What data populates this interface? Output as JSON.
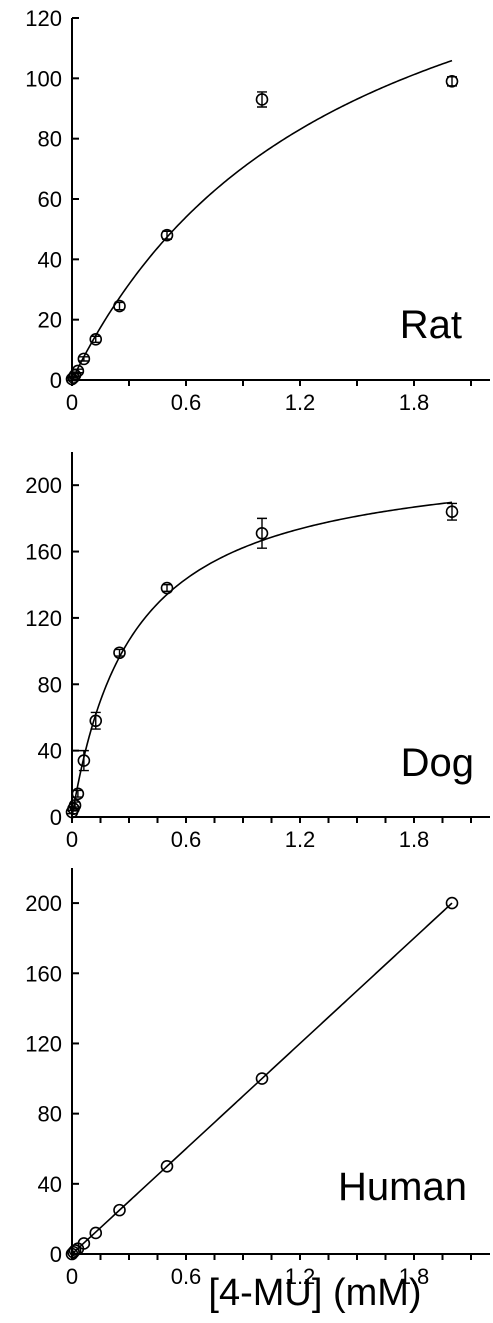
{
  "xlabel": "[4-MU] (mM)",
  "chart_data": [
    {
      "type": "scatter",
      "label": "Rat",
      "xlim": [
        0,
        2.2
      ],
      "ylim": [
        0,
        120
      ],
      "x_ticks": [
        "0",
        "0.6",
        "1.2",
        "1.8"
      ],
      "x_tick_values": [
        0,
        0.6,
        1.2,
        1.8
      ],
      "y_ticks": [
        "0",
        "20",
        "40",
        "60",
        "80",
        "100",
        "120"
      ],
      "y_tick_values": [
        0,
        20,
        40,
        60,
        80,
        100,
        120
      ],
      "points": [
        {
          "x": 0.0,
          "y": 0.3,
          "err": 0.5
        },
        {
          "x": 0.008,
          "y": 0.8,
          "err": 0.5
        },
        {
          "x": 0.016,
          "y": 1.6,
          "err": 0.5
        },
        {
          "x": 0.031,
          "y": 3.0,
          "err": 0.6
        },
        {
          "x": 0.0625,
          "y": 7.0,
          "err": 0.7
        },
        {
          "x": 0.125,
          "y": 13.5,
          "err": 1.0
        },
        {
          "x": 0.25,
          "y": 24.5,
          "err": 1.2
        },
        {
          "x": 0.5,
          "y": 48.0,
          "err": 1.3
        },
        {
          "x": 1.0,
          "y": 93.0,
          "err": 2.5
        },
        {
          "x": 2.0,
          "y": 99.0,
          "err": 1.5
        }
      ],
      "fit": {
        "model": "michaelis-menten",
        "vmax": 180,
        "km": 1.4
      }
    },
    {
      "type": "scatter",
      "label": "Dog",
      "xlim": [
        0,
        2.2
      ],
      "ylim": [
        0,
        220
      ],
      "x_ticks": [
        "0",
        "0.6",
        "1.2",
        "1.8"
      ],
      "x_tick_values": [
        0,
        0.6,
        1.2,
        1.8
      ],
      "y_ticks": [
        "0",
        "40",
        "80",
        "120",
        "160",
        "200"
      ],
      "y_tick_values": [
        0,
        40,
        80,
        120,
        160,
        200
      ],
      "points": [
        {
          "x": 0.0,
          "y": 3,
          "err": 1
        },
        {
          "x": 0.008,
          "y": 5,
          "err": 1
        },
        {
          "x": 0.016,
          "y": 7,
          "err": 2
        },
        {
          "x": 0.031,
          "y": 14,
          "err": 2
        },
        {
          "x": 0.0625,
          "y": 34,
          "err": 6
        },
        {
          "x": 0.125,
          "y": 58,
          "err": 5
        },
        {
          "x": 0.25,
          "y": 99,
          "err": 2
        },
        {
          "x": 0.5,
          "y": 138,
          "err": 2
        },
        {
          "x": 1.0,
          "y": 171,
          "err": 9
        },
        {
          "x": 2.0,
          "y": 184,
          "err": 5
        }
      ],
      "fit": {
        "model": "michaelis-menten",
        "vmax": 220,
        "km": 0.32
      }
    },
    {
      "type": "scatter",
      "label": "Human",
      "xlim": [
        0,
        2.2
      ],
      "ylim": [
        0,
        220
      ],
      "x_ticks": [
        "0",
        "0.6",
        "1.2",
        "1.8"
      ],
      "x_tick_values": [
        0,
        0.6,
        1.2,
        1.8
      ],
      "y_ticks": [
        "0",
        "40",
        "80",
        "120",
        "160",
        "200"
      ],
      "y_tick_values": [
        0,
        40,
        80,
        120,
        160,
        200
      ],
      "points": [
        {
          "x": 0.0,
          "y": 0,
          "err": 0
        },
        {
          "x": 0.008,
          "y": 1,
          "err": 0
        },
        {
          "x": 0.016,
          "y": 2,
          "err": 0
        },
        {
          "x": 0.031,
          "y": 3,
          "err": 0
        },
        {
          "x": 0.0625,
          "y": 6,
          "err": 0
        },
        {
          "x": 0.125,
          "y": 12,
          "err": 0
        },
        {
          "x": 0.25,
          "y": 25,
          "err": 0
        },
        {
          "x": 0.5,
          "y": 50,
          "err": 0
        },
        {
          "x": 1.0,
          "y": 100,
          "err": 0
        },
        {
          "x": 2.0,
          "y": 200,
          "err": 0
        }
      ],
      "fit": {
        "model": "linear",
        "slope": 100,
        "intercept": 0
      }
    }
  ]
}
